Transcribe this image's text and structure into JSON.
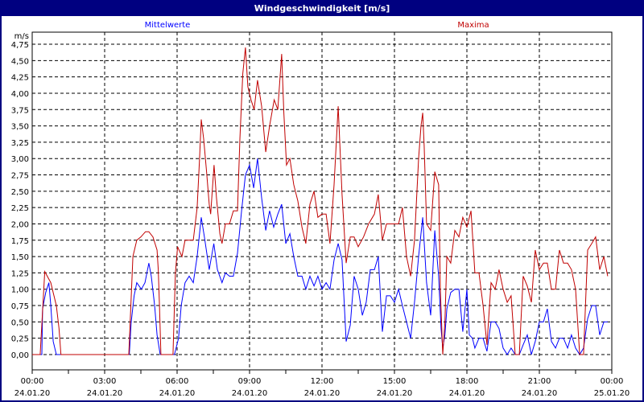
{
  "window": {
    "title": "Windgeschwindigkeit [m/s]"
  },
  "chart_data": {
    "type": "line",
    "title": "Windgeschwindigkeit [m/s]",
    "ylabel": "m/s",
    "xlabel": "",
    "xunit": "hours since 24.01.20 00:00",
    "xlim": [
      0,
      24
    ],
    "ylim": [
      0,
      4.75
    ],
    "grid": true,
    "y_ticks": [
      "0,00",
      "0,25",
      "0,50",
      "0,75",
      "1,00",
      "1,25",
      "1,50",
      "1,75",
      "2,00",
      "2,25",
      "2,50",
      "2,75",
      "3,00",
      "3,25",
      "3,50",
      "3,75",
      "4,00",
      "4,25",
      "4,50",
      "4,75"
    ],
    "x_ticks": [
      {
        "time": "00:00",
        "date": "24.01.20"
      },
      {
        "time": "03:00",
        "date": "24.01.20"
      },
      {
        "time": "06:00",
        "date": "24.01.20"
      },
      {
        "time": "09:00",
        "date": "24.01.20"
      },
      {
        "time": "12:00",
        "date": "24.01.20"
      },
      {
        "time": "15:00",
        "date": "24.01.20"
      },
      {
        "time": "18:00",
        "date": "24.01.20"
      },
      {
        "time": "21:00",
        "date": "24.01.20"
      },
      {
        "time": "00:00",
        "date": "25.01.20"
      }
    ],
    "legend_placement": "top",
    "series": [
      {
        "name": "Mittelwerte",
        "color": "#0000ff",
        "points": [
          [
            0,
            0
          ],
          [
            0.4,
            0
          ],
          [
            0.43,
            0.7
          ],
          [
            0.56,
            0.95
          ],
          [
            0.69,
            1.1
          ],
          [
            0.77,
            0.75
          ],
          [
            0.87,
            0.2
          ],
          [
            1.0,
            0
          ],
          [
            4.02,
            0
          ],
          [
            4.1,
            0.5
          ],
          [
            4.22,
            0.9
          ],
          [
            4.33,
            1.1
          ],
          [
            4.52,
            1.0
          ],
          [
            4.67,
            1.1
          ],
          [
            4.83,
            1.4
          ],
          [
            4.93,
            1.2
          ],
          [
            5.07,
            0.75
          ],
          [
            5.17,
            0.3
          ],
          [
            5.3,
            0
          ],
          [
            5.89,
            0
          ],
          [
            6.06,
            0.25
          ],
          [
            6.17,
            0.75
          ],
          [
            6.33,
            1.1
          ],
          [
            6.5,
            1.2
          ],
          [
            6.67,
            1.1
          ],
          [
            6.83,
            1.5
          ],
          [
            7.0,
            2.1
          ],
          [
            7.13,
            1.8
          ],
          [
            7.33,
            1.3
          ],
          [
            7.52,
            1.7
          ],
          [
            7.67,
            1.3
          ],
          [
            7.86,
            1.1
          ],
          [
            8.0,
            1.25
          ],
          [
            8.17,
            1.2
          ],
          [
            8.33,
            1.2
          ],
          [
            8.5,
            1.55
          ],
          [
            8.67,
            2.2
          ],
          [
            8.83,
            2.75
          ],
          [
            9.0,
            2.9
          ],
          [
            9.17,
            2.55
          ],
          [
            9.33,
            3.0
          ],
          [
            9.5,
            2.4
          ],
          [
            9.67,
            1.9
          ],
          [
            9.83,
            2.2
          ],
          [
            10.0,
            1.95
          ],
          [
            10.17,
            2.15
          ],
          [
            10.33,
            2.3
          ],
          [
            10.5,
            1.7
          ],
          [
            10.67,
            1.85
          ],
          [
            10.83,
            1.5
          ],
          [
            11.0,
            1.2
          ],
          [
            11.17,
            1.2
          ],
          [
            11.33,
            1.0
          ],
          [
            11.5,
            1.2
          ],
          [
            11.67,
            1.05
          ],
          [
            11.83,
            1.2
          ],
          [
            12.0,
            1.0
          ],
          [
            12.17,
            1.1
          ],
          [
            12.33,
            1.0
          ],
          [
            12.5,
            1.45
          ],
          [
            12.67,
            1.7
          ],
          [
            12.83,
            1.45
          ],
          [
            13.0,
            0.2
          ],
          [
            13.17,
            0.45
          ],
          [
            13.33,
            1.2
          ],
          [
            13.5,
            1.0
          ],
          [
            13.67,
            0.6
          ],
          [
            13.83,
            0.8
          ],
          [
            14.0,
            1.3
          ],
          [
            14.17,
            1.3
          ],
          [
            14.33,
            1.5
          ],
          [
            14.5,
            0.35
          ],
          [
            14.67,
            0.9
          ],
          [
            14.83,
            0.9
          ],
          [
            15.0,
            0.8
          ],
          [
            15.17,
            1.0
          ],
          [
            15.33,
            0.75
          ],
          [
            15.5,
            0.5
          ],
          [
            15.67,
            0.25
          ],
          [
            15.83,
            0.8
          ],
          [
            16.0,
            1.5
          ],
          [
            16.17,
            2.1
          ],
          [
            16.33,
            1.1
          ],
          [
            16.5,
            0.6
          ],
          [
            16.67,
            1.9
          ],
          [
            16.83,
            1.2
          ],
          [
            16.93,
            0.4
          ],
          [
            17.0,
            0.1
          ],
          [
            17.09,
            0.3
          ],
          [
            17.17,
            0.7
          ],
          [
            17.33,
            0.95
          ],
          [
            17.5,
            1.0
          ],
          [
            17.67,
            1.0
          ],
          [
            17.83,
            0.35
          ],
          [
            18.0,
            1.0
          ],
          [
            18.1,
            0.3
          ],
          [
            18.23,
            0.25
          ],
          [
            18.33,
            0.1
          ],
          [
            18.5,
            0.25
          ],
          [
            18.67,
            0.25
          ],
          [
            18.83,
            0.05
          ],
          [
            19.0,
            0.5
          ],
          [
            19.17,
            0.5
          ],
          [
            19.33,
            0.4
          ],
          [
            19.5,
            0.1
          ],
          [
            19.67,
            0
          ],
          [
            19.83,
            0.1
          ],
          [
            20.0,
            0
          ],
          [
            20.17,
            0
          ],
          [
            20.33,
            0.15
          ],
          [
            20.5,
            0.3
          ],
          [
            20.67,
            0
          ],
          [
            20.83,
            0.2
          ],
          [
            21.0,
            0.5
          ],
          [
            21.17,
            0.5
          ],
          [
            21.33,
            0.7
          ],
          [
            21.5,
            0.2
          ],
          [
            21.67,
            0.1
          ],
          [
            21.83,
            0.25
          ],
          [
            22.0,
            0.25
          ],
          [
            22.17,
            0.1
          ],
          [
            22.33,
            0.3
          ],
          [
            22.5,
            0.1
          ],
          [
            22.67,
            0
          ],
          [
            22.83,
            0.1
          ],
          [
            23.0,
            0.55
          ],
          [
            23.17,
            0.75
          ],
          [
            23.33,
            0.75
          ],
          [
            23.5,
            0.3
          ],
          [
            23.67,
            0.5
          ],
          [
            23.83,
            0.5
          ]
        ]
      },
      {
        "name": "Maxima",
        "color": "#c00000",
        "points": [
          [
            0,
            0
          ],
          [
            0.33,
            0
          ],
          [
            0.52,
            1.27
          ],
          [
            0.77,
            1.1
          ],
          [
            1.0,
            0.75
          ],
          [
            1.11,
            0.4
          ],
          [
            1.19,
            0
          ],
          [
            4.0,
            0
          ],
          [
            4.17,
            1.5
          ],
          [
            4.33,
            1.75
          ],
          [
            4.5,
            1.8
          ],
          [
            4.69,
            1.88
          ],
          [
            4.83,
            1.88
          ],
          [
            5.0,
            1.8
          ],
          [
            5.17,
            1.6
          ],
          [
            5.22,
            1.3
          ],
          [
            5.27,
            0.75
          ],
          [
            5.33,
            0
          ],
          [
            5.83,
            0
          ],
          [
            5.89,
            0.75
          ],
          [
            5.93,
            1.25
          ],
          [
            6.02,
            1.65
          ],
          [
            6.2,
            1.5
          ],
          [
            6.33,
            1.75
          ],
          [
            6.67,
            1.75
          ],
          [
            6.83,
            2.25
          ],
          [
            6.93,
            3.0
          ],
          [
            7.0,
            3.6
          ],
          [
            7.1,
            3.3
          ],
          [
            7.22,
            2.8
          ],
          [
            7.33,
            2.3
          ],
          [
            7.39,
            2.15
          ],
          [
            7.53,
            2.9
          ],
          [
            7.63,
            2.4
          ],
          [
            7.77,
            1.85
          ],
          [
            7.86,
            1.7
          ],
          [
            8.0,
            2.0
          ],
          [
            8.17,
            2.0
          ],
          [
            8.33,
            2.2
          ],
          [
            8.5,
            2.2
          ],
          [
            8.6,
            3.3
          ],
          [
            8.72,
            4.3
          ],
          [
            8.83,
            4.7
          ],
          [
            8.93,
            4.1
          ],
          [
            9.06,
            3.9
          ],
          [
            9.19,
            3.75
          ],
          [
            9.33,
            4.2
          ],
          [
            9.5,
            3.8
          ],
          [
            9.67,
            3.1
          ],
          [
            9.83,
            3.5
          ],
          [
            10.02,
            3.9
          ],
          [
            10.17,
            3.75
          ],
          [
            10.33,
            4.6
          ],
          [
            10.42,
            3.7
          ],
          [
            10.53,
            2.9
          ],
          [
            10.67,
            3.0
          ],
          [
            10.83,
            2.6
          ],
          [
            11.0,
            2.35
          ],
          [
            11.17,
            1.95
          ],
          [
            11.33,
            1.7
          ],
          [
            11.5,
            2.3
          ],
          [
            11.67,
            2.5
          ],
          [
            11.83,
            2.1
          ],
          [
            12.0,
            2.15
          ],
          [
            12.17,
            2.15
          ],
          [
            12.33,
            1.7
          ],
          [
            12.5,
            2.6
          ],
          [
            12.67,
            3.8
          ],
          [
            12.83,
            2.45
          ],
          [
            13.0,
            1.4
          ],
          [
            13.17,
            1.8
          ],
          [
            13.33,
            1.8
          ],
          [
            13.5,
            1.65
          ],
          [
            13.72,
            1.8
          ],
          [
            13.93,
            2.0
          ],
          [
            14.17,
            2.15
          ],
          [
            14.33,
            2.45
          ],
          [
            14.5,
            1.75
          ],
          [
            14.67,
            2.0
          ],
          [
            15.17,
            2.0
          ],
          [
            15.33,
            2.25
          ],
          [
            15.5,
            1.5
          ],
          [
            15.67,
            1.2
          ],
          [
            15.83,
            1.75
          ],
          [
            16.0,
            3.0
          ],
          [
            16.1,
            3.5
          ],
          [
            16.17,
            3.7
          ],
          [
            16.23,
            3.2
          ],
          [
            16.33,
            2.0
          ],
          [
            16.5,
            1.9
          ],
          [
            16.67,
            2.8
          ],
          [
            16.83,
            2.6
          ],
          [
            16.9,
            1.0
          ],
          [
            17.0,
            0
          ],
          [
            17.09,
            0.5
          ],
          [
            17.17,
            1.5
          ],
          [
            17.33,
            1.4
          ],
          [
            17.5,
            1.9
          ],
          [
            17.67,
            1.8
          ],
          [
            17.83,
            2.1
          ],
          [
            18.0,
            1.95
          ],
          [
            18.17,
            2.2
          ],
          [
            18.33,
            1.25
          ],
          [
            18.5,
            1.25
          ],
          [
            18.67,
            0.75
          ],
          [
            18.83,
            0.15
          ],
          [
            19.0,
            1.1
          ],
          [
            19.17,
            1.0
          ],
          [
            19.33,
            1.3
          ],
          [
            19.5,
            1.0
          ],
          [
            19.67,
            0.8
          ],
          [
            19.83,
            0.9
          ],
          [
            20.0,
            0
          ],
          [
            20.17,
            0
          ],
          [
            20.33,
            1.2
          ],
          [
            20.5,
            1.05
          ],
          [
            20.67,
            0.8
          ],
          [
            20.83,
            1.6
          ],
          [
            21.0,
            1.3
          ],
          [
            21.17,
            1.4
          ],
          [
            21.33,
            1.4
          ],
          [
            21.5,
            1.0
          ],
          [
            21.67,
            1.0
          ],
          [
            21.83,
            1.6
          ],
          [
            22.0,
            1.4
          ],
          [
            22.17,
            1.4
          ],
          [
            22.33,
            1.3
          ],
          [
            22.5,
            1.0
          ],
          [
            22.67,
            0
          ],
          [
            22.83,
            0
          ],
          [
            23.0,
            1.6
          ],
          [
            23.17,
            1.7
          ],
          [
            23.33,
            1.8
          ],
          [
            23.5,
            1.3
          ],
          [
            23.67,
            1.5
          ],
          [
            23.83,
            1.2
          ]
        ]
      }
    ]
  }
}
